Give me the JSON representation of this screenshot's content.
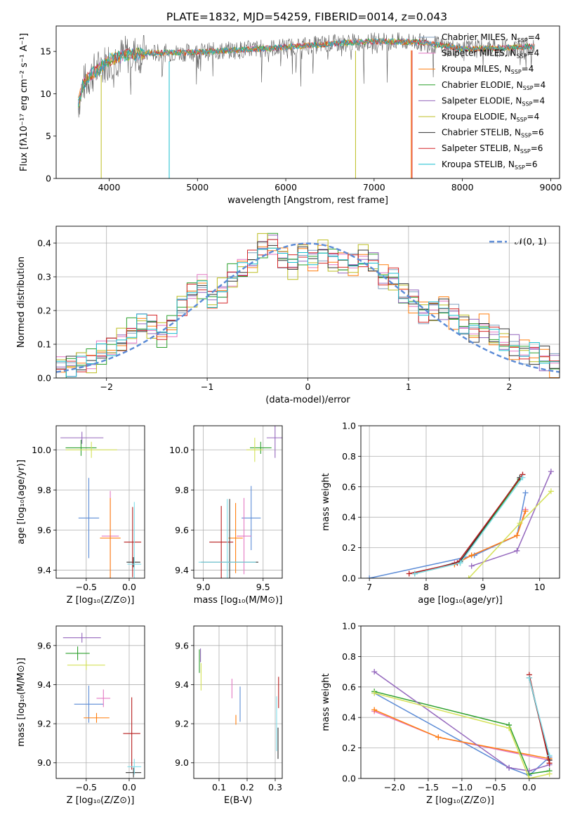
{
  "title": "PLATE=1832, MJD=54259, FIBERID=0014, z=0.043",
  "colors": [
    "#7f9fbf",
    "#e377c2",
    "#ff7f0e",
    "#2ca02c",
    "#9467bd",
    "#bcbd22",
    "#333333",
    "#d62728",
    "#17becf"
  ],
  "chart_data": [
    {
      "id": "spectrum",
      "type": "line",
      "xlabel": "wavelength [Angstrom, rest frame]",
      "ylabel": "Flux [fλ10⁻¹⁷ erg cm⁻² s⁻¹ A⁻¹]",
      "xlim": [
        3400,
        9100
      ],
      "ylim": [
        0,
        18
      ],
      "xticks": [
        4000,
        5000,
        6000,
        7000,
        8000,
        9000
      ],
      "yticks": [
        0,
        5,
        10,
        15
      ],
      "grid": false,
      "legend_position": "right",
      "data_x": [
        3650,
        3700,
        3800,
        3900,
        4000,
        4200,
        4500,
        5000,
        5500,
        6000,
        6500,
        7000,
        7500,
        8000,
        8500,
        8800
      ],
      "data_y": [
        8.8,
        11.0,
        12.3,
        13.1,
        14.0,
        14.6,
        14.8,
        14.9,
        15.2,
        15.5,
        15.9,
        16.2,
        16.1,
        15.3,
        15.4,
        15.6
      ],
      "series": [
        {
          "name": "Chabrier MILES, Nₛₛₚ=4",
          "label_main": "Chabrier MILES, N",
          "label_sub": "SSP",
          "label_tail": "=4",
          "color": "#7f9fbf"
        },
        {
          "name": "Salpeter MILES, N=4",
          "label_main": "Salpeter MILES, N",
          "label_sub": "SSP",
          "label_tail": "=4",
          "color": "#e377c2"
        },
        {
          "name": "Kroupa MILES, N=4",
          "label_main": "Kroupa MILES, N",
          "label_sub": "SSP",
          "label_tail": "=4",
          "color": "#ff7f0e"
        },
        {
          "name": "Chabrier ELODIE, N=4",
          "label_main": "Chabrier ELODIE, N",
          "label_sub": "SSP",
          "label_tail": "=4",
          "color": "#2ca02c"
        },
        {
          "name": "Salpeter ELODIE, N=4",
          "label_main": "Salpeter ELODIE, N",
          "label_sub": "SSP",
          "label_tail": "=4",
          "color": "#9467bd"
        },
        {
          "name": "Kroupa ELODIE, N=4",
          "label_main": "Kroupa ELODIE, N",
          "label_sub": "SSP",
          "label_tail": "=4",
          "color": "#bcbd22"
        },
        {
          "name": "Chabrier STELIB, N=6",
          "label_main": "Chabrier STELIB, N",
          "label_sub": "SSP",
          "label_tail": "=6",
          "color": "#333333"
        },
        {
          "name": "Salpeter STELIB, N=6",
          "label_main": "Salpeter STELIB, N",
          "label_sub": "SSP",
          "label_tail": "=6",
          "color": "#d62728"
        },
        {
          "name": "Kroupa STELIB, N=6",
          "label_main": "Kroupa STELIB, N",
          "label_sub": "SSP",
          "label_tail": "=6",
          "color": "#17becf"
        }
      ]
    },
    {
      "id": "residuals",
      "type": "line",
      "xlabel": "(data-model)/error",
      "ylabel": "Normed distribution",
      "xlim": [
        -2.5,
        2.5
      ],
      "ylim": [
        0,
        0.45
      ],
      "xticks": [
        -2,
        -1,
        0,
        1,
        2
      ],
      "yticks": [
        0.0,
        0.1,
        0.2,
        0.3,
        0.4
      ],
      "grid": true,
      "legend": "𝒩(0, 1)",
      "legend_position": "top-right",
      "gaussian": {
        "mean": 0,
        "sigma": 1,
        "color": "#5b8bd6"
      },
      "hist_centers": [
        -2.45,
        -2.35,
        -2.25,
        -2.15,
        -2.05,
        -1.95,
        -1.85,
        -1.75,
        -1.65,
        -1.55,
        -1.45,
        -1.35,
        -1.25,
        -1.15,
        -1.05,
        -0.95,
        -0.85,
        -0.75,
        -0.65,
        -0.55,
        -0.45,
        -0.35,
        -0.25,
        -0.15,
        -0.05,
        0.05,
        0.15,
        0.25,
        0.35,
        0.45,
        0.55,
        0.65,
        0.75,
        0.85,
        0.95,
        1.05,
        1.15,
        1.25,
        1.35,
        1.45,
        1.55,
        1.65,
        1.75,
        1.85,
        1.95,
        2.05,
        2.15,
        2.25,
        2.35,
        2.45
      ],
      "hist_values": [
        0.03,
        0.04,
        0.05,
        0.05,
        0.07,
        0.09,
        0.11,
        0.14,
        0.16,
        0.15,
        0.13,
        0.16,
        0.22,
        0.25,
        0.27,
        0.23,
        0.26,
        0.3,
        0.32,
        0.34,
        0.39,
        0.4,
        0.36,
        0.33,
        0.37,
        0.35,
        0.38,
        0.35,
        0.34,
        0.33,
        0.36,
        0.34,
        0.3,
        0.29,
        0.25,
        0.23,
        0.2,
        0.2,
        0.21,
        0.18,
        0.16,
        0.14,
        0.15,
        0.12,
        0.11,
        0.09,
        0.08,
        0.07,
        0.06,
        0.04
      ]
    },
    {
      "id": "age_vs_Z",
      "type": "scatter",
      "xlabel": "Z [log₁₀(Z/Z⊙)]",
      "ylabel": "age  [log₁₀(age/yr)]",
      "xlim": [
        -0.85,
        0.18
      ],
      "ylim": [
        9.36,
        10.12
      ],
      "xticks": [
        -0.5,
        0.0
      ],
      "yticks": [
        9.4,
        9.6,
        9.8,
        10.0
      ],
      "grid": true,
      "points": [
        {
          "x": -0.47,
          "y": 9.66,
          "xerr": 0.12,
          "yerr": 0.4,
          "color": "#5b8bd6"
        },
        {
          "x": -0.22,
          "y": 9.57,
          "xerr": 0.1,
          "yerr": 0.45,
          "color": "#e377c2"
        },
        {
          "x": -0.22,
          "y": 9.56,
          "xerr": 0.12,
          "yerr": 0.4,
          "color": "#ff7f0e"
        },
        {
          "x": -0.56,
          "y": 10.01,
          "xerr": 0.18,
          "yerr": 0.08,
          "color": "#2ca02c"
        },
        {
          "x": -0.55,
          "y": 10.06,
          "xerr": 0.25,
          "yerr": 0.06,
          "color": "#9467bd"
        },
        {
          "x": -0.44,
          "y": 10.0,
          "xerr": 0.3,
          "yerr": 0.08,
          "color": "#d4e157"
        },
        {
          "x": 0.05,
          "y": 9.44,
          "xerr": 0.08,
          "yerr": 0.05,
          "color": "#333333"
        },
        {
          "x": 0.04,
          "y": 9.54,
          "xerr": 0.1,
          "yerr": 0.35,
          "color": "#b71c1c"
        },
        {
          "x": 0.06,
          "y": 9.43,
          "xerr": 0.08,
          "yerr": 0.62,
          "color": "#80deea"
        }
      ]
    },
    {
      "id": "age_vs_mass",
      "type": "scatter",
      "xlabel": "mass [log₁₀(M/M⊙)]",
      "ylabel": "",
      "xlim": [
        8.92,
        9.66
      ],
      "ylim": [
        9.36,
        10.12
      ],
      "xticks": [
        9.0,
        9.5
      ],
      "yticks": [
        9.4,
        9.6,
        9.8,
        10.0
      ],
      "grid": true,
      "points": [
        {
          "x": 9.4,
          "y": 9.66,
          "xerr": 0.08,
          "yerr": 0.32,
          "color": "#5b8bd6"
        },
        {
          "x": 9.34,
          "y": 9.57,
          "xerr": 0.06,
          "yerr": 0.38,
          "color": "#e377c2"
        },
        {
          "x": 9.27,
          "y": 9.56,
          "xerr": 0.06,
          "yerr": 0.35,
          "color": "#ff7f0e"
        },
        {
          "x": 9.48,
          "y": 10.01,
          "xerr": 0.09,
          "yerr": 0.06,
          "color": "#2ca02c"
        },
        {
          "x": 9.6,
          "y": 10.06,
          "xerr": 0.07,
          "yerr": 0.2,
          "color": "#9467bd"
        },
        {
          "x": 9.43,
          "y": 10.0,
          "xerr": 0.07,
          "yerr": 0.12,
          "color": "#d4e157"
        },
        {
          "x": 9.22,
          "y": 9.44,
          "xerr": 0.24,
          "yerr": 0.63,
          "color": "#333333"
        },
        {
          "x": 9.15,
          "y": 9.54,
          "xerr": 0.1,
          "yerr": 0.36,
          "color": "#b71c1c"
        },
        {
          "x": 9.2,
          "y": 9.44,
          "xerr": 0.24,
          "yerr": 0.63,
          "color": "#80deea"
        }
      ]
    },
    {
      "id": "massweight_vs_age",
      "type": "line",
      "xlabel": "age  [log₁₀(age/yr)]",
      "ylabel": "mass weight",
      "xlim": [
        6.85,
        10.35
      ],
      "ylim": [
        0,
        1
      ],
      "xticks": [
        7,
        8,
        9,
        10
      ],
      "yticks": [
        0.0,
        0.2,
        0.4,
        0.6,
        0.8,
        1.0
      ],
      "grid": true,
      "series": [
        {
          "x": [
            7.0,
            8.85,
            9.6,
            9.75
          ],
          "y": [
            0.0,
            0.15,
            0.28,
            0.56
          ],
          "color": "#5b8bd6"
        },
        {
          "x": [
            8.5,
            9.6,
            9.75
          ],
          "y": [
            0.1,
            0.28,
            0.45
          ],
          "color": "#e377c2"
        },
        {
          "x": [
            8.5,
            8.8,
            9.6,
            9.75
          ],
          "y": [
            0.09,
            0.15,
            0.28,
            0.44
          ],
          "color": "#ff7f0e"
        },
        {
          "x": [
            7.8,
            8.6,
            9.65
          ],
          "y": [
            0.03,
            0.1,
            0.65
          ],
          "color": "#2ca02c"
        },
        {
          "x": [
            8.8,
            9.6,
            10.2
          ],
          "y": [
            0.08,
            0.18,
            0.7
          ],
          "color": "#9467bd"
        },
        {
          "x": [
            8.75,
            9.65,
            10.2
          ],
          "y": [
            0.0,
            0.36,
            0.57
          ],
          "color": "#d4e157"
        },
        {
          "x": [
            7.8,
            8.6,
            9.65
          ],
          "y": [
            0.03,
            0.11,
            0.66
          ],
          "color": "#333333"
        },
        {
          "x": [
            7.7,
            8.55,
            9.7
          ],
          "y": [
            0.03,
            0.1,
            0.68
          ],
          "color": "#b71c1c"
        },
        {
          "x": [
            7.8,
            8.6,
            9.7
          ],
          "y": [
            0.03,
            0.1,
            0.66
          ],
          "color": "#80deea"
        }
      ]
    },
    {
      "id": "mass_vs_Z",
      "type": "scatter",
      "xlabel": "Z [log₁₀(Z/Z⊙)]",
      "ylabel": "mass [log₁₀(M/M⊙)]",
      "xlim": [
        -0.85,
        0.18
      ],
      "ylim": [
        8.92,
        9.7
      ],
      "xticks": [
        -0.5,
        0.0
      ],
      "yticks": [
        9.0,
        9.2,
        9.4,
        9.6
      ],
      "grid": true,
      "points": [
        {
          "x": -0.47,
          "y": 9.3,
          "xerr": 0.17,
          "yerr": 0.19,
          "color": "#5b8bd6"
        },
        {
          "x": -0.3,
          "y": 9.33,
          "xerr": 0.08,
          "yerr": 0.09,
          "color": "#e377c2"
        },
        {
          "x": -0.38,
          "y": 9.23,
          "xerr": 0.15,
          "yerr": 0.05,
          "color": "#ff7f0e"
        },
        {
          "x": -0.6,
          "y": 9.56,
          "xerr": 0.14,
          "yerr": 0.07,
          "color": "#2ca02c"
        },
        {
          "x": -0.55,
          "y": 9.64,
          "xerr": 0.22,
          "yerr": 0.05,
          "color": "#9467bd"
        },
        {
          "x": -0.5,
          "y": 9.5,
          "xerr": 0.22,
          "yerr": 0.05,
          "color": "#d4e157"
        },
        {
          "x": 0.05,
          "y": 8.95,
          "xerr": 0.09,
          "yerr": 0.05,
          "color": "#333333"
        },
        {
          "x": 0.03,
          "y": 9.15,
          "xerr": 0.1,
          "yerr": 0.37,
          "color": "#b71c1c"
        },
        {
          "x": 0.06,
          "y": 8.98,
          "xerr": 0.08,
          "yerr": 0.08,
          "color": "#80deea"
        }
      ]
    },
    {
      "id": "ebv",
      "type": "scatter",
      "xlabel": "E(B-V)",
      "ylabel": "",
      "xlim": [
        0.01,
        0.325
      ],
      "ylim": [
        8.92,
        9.7
      ],
      "xticks": [
        0.1,
        0.2,
        0.3
      ],
      "yticks": [
        9.0,
        9.2,
        9.4,
        9.6
      ],
      "grid": true,
      "points": [
        {
          "x": 0.175,
          "y": 9.3,
          "xerr": 0.0,
          "yerr": 0.18,
          "color": "#5b8bd6"
        },
        {
          "x": 0.146,
          "y": 9.38,
          "xerr": 0.0,
          "yerr": 0.1,
          "color": "#e377c2"
        },
        {
          "x": 0.16,
          "y": 9.22,
          "xerr": 0.0,
          "yerr": 0.05,
          "color": "#ff7f0e"
        },
        {
          "x": 0.03,
          "y": 9.52,
          "xerr": 0.0,
          "yerr": 0.12,
          "color": "#2ca02c"
        },
        {
          "x": 0.034,
          "y": 9.55,
          "xerr": 0.0,
          "yerr": 0.07,
          "color": "#9467bd"
        },
        {
          "x": 0.036,
          "y": 9.44,
          "xerr": 0.0,
          "yerr": 0.14,
          "color": "#d4e157"
        },
        {
          "x": 0.31,
          "y": 9.1,
          "xerr": 0.0,
          "yerr": 0.16,
          "color": "#333333"
        },
        {
          "x": 0.312,
          "y": 9.36,
          "xerr": 0.0,
          "yerr": 0.16,
          "color": "#b71c1c"
        },
        {
          "x": 0.305,
          "y": 9.2,
          "xerr": 0.0,
          "yerr": 0.28,
          "color": "#80deea"
        }
      ]
    },
    {
      "id": "massweight_vs_Z",
      "type": "line",
      "xlabel": "Z [log₁₀(Z/Z⊙)]",
      "ylabel": "mass weight",
      "xlim": [
        -2.5,
        0.45
      ],
      "ylim": [
        0,
        1
      ],
      "xticks": [
        -2.0,
        -1.5,
        -1.0,
        -0.5,
        0.0
      ],
      "yticks": [
        0.0,
        0.2,
        0.4,
        0.6,
        0.8,
        1.0
      ],
      "grid": true,
      "series": [
        {
          "x": [
            -2.3,
            -0.3,
            0.0,
            0.3
          ],
          "y": [
            0.56,
            0.07,
            0.02,
            0.14
          ],
          "color": "#5b8bd6"
        },
        {
          "x": [
            -2.3,
            -1.35,
            0.3
          ],
          "y": [
            0.44,
            0.27,
            0.12
          ],
          "color": "#e377c2"
        },
        {
          "x": [
            -2.3,
            -1.35,
            0.3
          ],
          "y": [
            0.45,
            0.27,
            0.13
          ],
          "color": "#ff7f0e"
        },
        {
          "x": [
            -2.3,
            -0.3,
            0.0,
            0.3
          ],
          "y": [
            0.57,
            0.35,
            0.03,
            0.05
          ],
          "color": "#2ca02c"
        },
        {
          "x": [
            -2.3,
            -0.3,
            0.0,
            0.3
          ],
          "y": [
            0.7,
            0.07,
            0.05,
            0.09
          ],
          "color": "#9467bd"
        },
        {
          "x": [
            -2.3,
            -0.3,
            0.0,
            0.3
          ],
          "y": [
            0.56,
            0.33,
            0.0,
            0.03
          ],
          "color": "#d4e157"
        },
        {
          "x": [
            0.0,
            0.3
          ],
          "y": [
            0.66,
            0.12
          ],
          "color": "#333333"
        },
        {
          "x": [
            0.0,
            0.3
          ],
          "y": [
            0.68,
            0.1
          ],
          "color": "#b71c1c"
        },
        {
          "x": [
            0.0,
            0.3
          ],
          "y": [
            0.66,
            0.15
          ],
          "color": "#80deea"
        }
      ]
    }
  ]
}
